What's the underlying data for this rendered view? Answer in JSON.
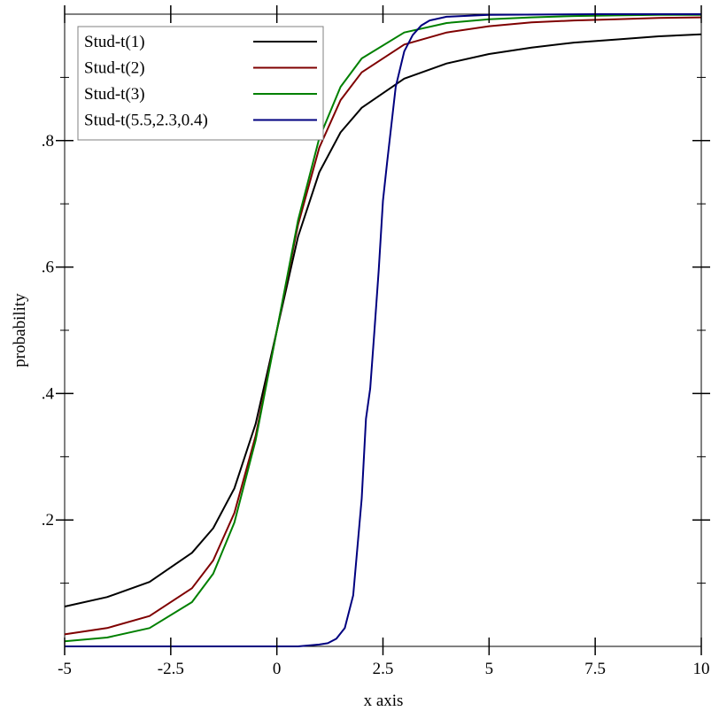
{
  "chart_data": {
    "type": "line",
    "xlabel": "x axis",
    "ylabel": "probability",
    "xlim": [
      -5,
      10
    ],
    "ylim": [
      0,
      1
    ],
    "x_ticks": [
      {
        "value": -5,
        "label": "-5"
      },
      {
        "value": -2.5,
        "label": "-2.5"
      },
      {
        "value": 0,
        "label": "0"
      },
      {
        "value": 2.5,
        "label": "2.5"
      },
      {
        "value": 5,
        "label": "5"
      },
      {
        "value": 7.5,
        "label": "7.5"
      },
      {
        "value": 10,
        "label": "10"
      }
    ],
    "y_ticks": [
      {
        "value": 0.2,
        "label": ".2"
      },
      {
        "value": 0.4,
        "label": ".4"
      },
      {
        "value": 0.6,
        "label": ".6"
      },
      {
        "value": 0.8,
        "label": ".8"
      }
    ],
    "y_minor_ticks": [
      0.1,
      0.3,
      0.5,
      0.7,
      0.9
    ],
    "x_minor_ticks": [],
    "grid": false,
    "legend_position": "top-left",
    "series": [
      {
        "name": "Stud-t(1)",
        "color": "#000000",
        "x": [
          -5,
          -4,
          -3,
          -2,
          -1.5,
          -1,
          -0.5,
          0,
          0.5,
          1,
          1.5,
          2,
          3,
          4,
          5,
          6,
          7,
          8,
          9,
          10
        ],
        "y": [
          0.063,
          0.078,
          0.102,
          0.148,
          0.187,
          0.25,
          0.352,
          0.5,
          0.648,
          0.75,
          0.813,
          0.852,
          0.898,
          0.922,
          0.937,
          0.947,
          0.955,
          0.96,
          0.965,
          0.968
        ]
      },
      {
        "name": "Stud-t(2)",
        "color": "#7f0000",
        "x": [
          -5,
          -4,
          -3,
          -2,
          -1.5,
          -1,
          -0.5,
          0,
          0.5,
          1,
          1.5,
          2,
          3,
          4,
          5,
          6,
          7,
          8,
          9,
          10
        ],
        "y": [
          0.019,
          0.029,
          0.048,
          0.092,
          0.136,
          0.211,
          0.333,
          0.5,
          0.667,
          0.789,
          0.864,
          0.908,
          0.952,
          0.971,
          0.981,
          0.987,
          0.99,
          0.992,
          0.994,
          0.995
        ]
      },
      {
        "name": "Stud-t(3)",
        "color": "#008000",
        "x": [
          -5,
          -4,
          -3,
          -2,
          -1.5,
          -1,
          -0.5,
          0,
          0.5,
          1,
          1.5,
          2,
          3,
          4,
          5,
          6,
          7,
          8,
          9,
          10
        ],
        "y": [
          0.008,
          0.014,
          0.029,
          0.07,
          0.115,
          0.196,
          0.326,
          0.5,
          0.674,
          0.804,
          0.885,
          0.93,
          0.971,
          0.986,
          0.992,
          0.995,
          0.997,
          0.998,
          0.999,
          0.999
        ]
      },
      {
        "name": "Stud-t(5.5,2.3,0.4)",
        "color": "#00007f",
        "x": [
          -5,
          0,
          0.5,
          1,
          1.2,
          1.4,
          1.6,
          1.8,
          2.0,
          2.1,
          2.2,
          2.3,
          2.4,
          2.5,
          2.6,
          2.8,
          3.0,
          3.2,
          3.4,
          3.6,
          4.0,
          5,
          7.5,
          10
        ],
        "y": [
          0.0,
          0.0,
          0.0,
          0.003,
          0.005,
          0.012,
          0.029,
          0.081,
          0.234,
          0.36,
          0.408,
          0.5,
          0.595,
          0.705,
          0.767,
          0.885,
          0.941,
          0.967,
          0.982,
          0.99,
          0.996,
          0.999,
          1.0,
          1.0
        ]
      }
    ]
  }
}
